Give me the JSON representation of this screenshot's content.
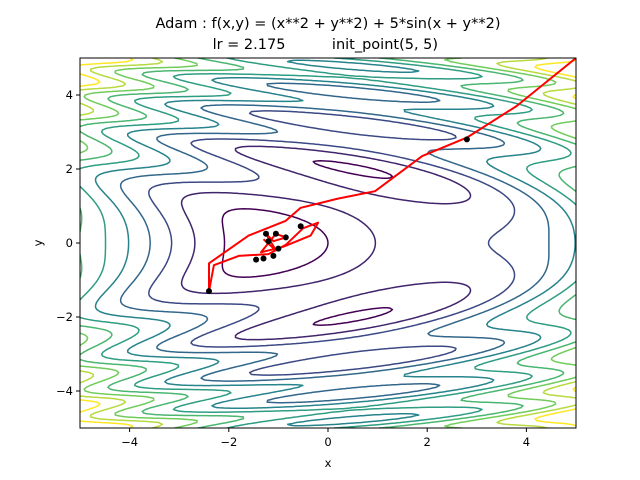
{
  "chart_data": {
    "type": "contour",
    "title_line1": "Adam : f(x,y) = (x**2 + y**2) + 5*sin(x + y**2)",
    "title_line2_left": "lr = 2.175",
    "title_line2_right": "init_point(5, 5)",
    "xlabel": "x",
    "ylabel": "y",
    "xlim": [
      -5,
      5
    ],
    "ylim": [
      -5,
      5
    ],
    "x_ticks": [
      -4,
      -2,
      0,
      2,
      4
    ],
    "y_ticks": [
      -4,
      -2,
      0,
      2,
      4
    ],
    "x_tick_labels": [
      "−4",
      "−2",
      "0",
      "2",
      "4"
    ],
    "y_tick_labels": [
      "−4",
      "−2",
      "0",
      "2",
      "4"
    ],
    "contour_levels": [
      0,
      5,
      10,
      15,
      20,
      25,
      30,
      35,
      40,
      45
    ],
    "colormap": "viridis",
    "path_color": "#ff0000",
    "marker_color": "#000000",
    "path": [
      [
        5.0,
        5.0
      ],
      [
        3.8,
        3.7
      ],
      [
        2.8,
        2.85
      ],
      [
        1.9,
        2.35
      ],
      [
        0.95,
        1.4
      ],
      [
        0.2,
        1.2
      ],
      [
        -0.55,
        0.95
      ],
      [
        -0.85,
        0.6
      ],
      [
        -1.6,
        0.2
      ],
      [
        -2.4,
        -0.55
      ],
      [
        -2.4,
        -1.3
      ],
      [
        -2.3,
        -0.6
      ],
      [
        -1.8,
        -0.35
      ],
      [
        -1.2,
        -0.3
      ],
      [
        -0.85,
        -0.05
      ],
      [
        -0.5,
        0.4
      ],
      [
        -0.2,
        0.55
      ],
      [
        -0.35,
        0.2
      ],
      [
        -0.9,
        -0.1
      ],
      [
        -1.35,
        -0.25
      ],
      [
        -1.2,
        0.0
      ],
      [
        -1.05,
        0.25
      ],
      [
        -0.85,
        0.15
      ],
      [
        -1.1,
        0.05
      ],
      [
        -1.25,
        0.25
      ],
      [
        -1.05,
        -0.2
      ],
      [
        -1.3,
        0.1
      ]
    ],
    "markers": [
      [
        2.8,
        2.8
      ],
      [
        -2.4,
        -1.3
      ],
      [
        -0.55,
        0.45
      ],
      [
        -1.45,
        -0.45
      ],
      [
        -1.3,
        -0.42
      ],
      [
        -1.1,
        -0.35
      ],
      [
        -1.0,
        -0.15
      ],
      [
        -1.2,
        0.05
      ],
      [
        -1.25,
        0.25
      ],
      [
        -1.05,
        0.25
      ],
      [
        -0.85,
        0.15
      ]
    ]
  }
}
